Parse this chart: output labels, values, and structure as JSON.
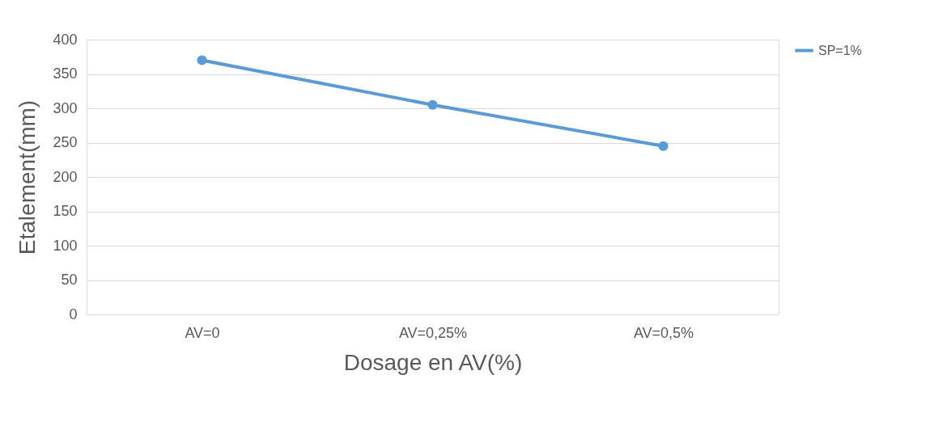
{
  "chart_data": {
    "type": "line",
    "xlabel": "Dosage en AV(%)",
    "ylabel": "Etalement(mm)",
    "categories": [
      "AV=0",
      "AV=0,25%",
      "AV=0,5%"
    ],
    "series": [
      {
        "name": "SP=1%",
        "color": "#5b9bd5",
        "values": [
          370,
          305,
          245
        ]
      }
    ],
    "ylim": [
      0,
      400
    ],
    "yticks": [
      0,
      50,
      100,
      150,
      200,
      250,
      300,
      350,
      400
    ],
    "grid": "y",
    "legend": "right",
    "marker": "circle",
    "line_style": "solid"
  }
}
